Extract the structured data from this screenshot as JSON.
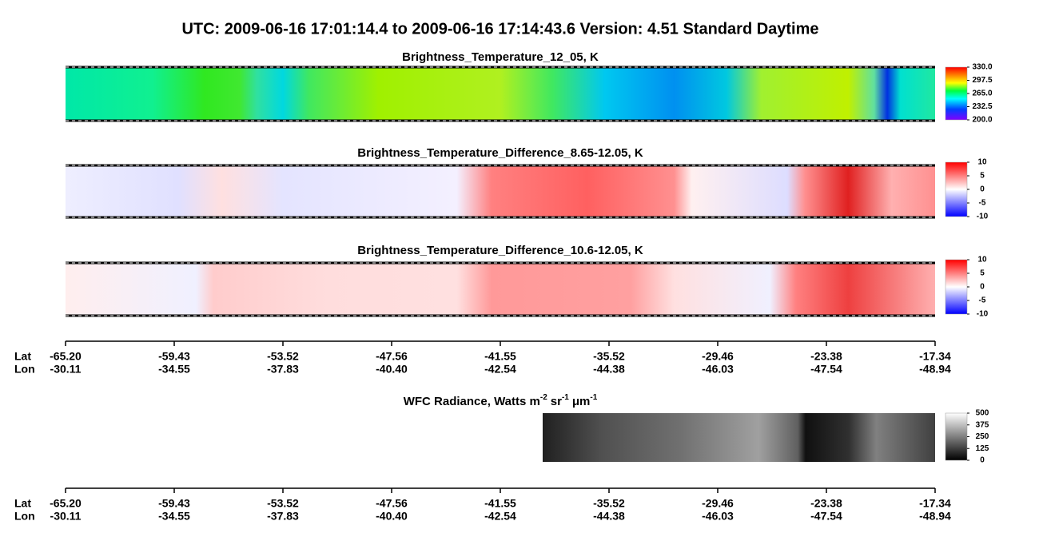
{
  "title": "UTC:  2009-06-16   17:01:14.4  to  2009-06-16   17:14:43.6    Version: 4.51  Standard Daytime",
  "chart_data": [
    {
      "type": "heatmap",
      "title": "Brightness_Temperature_12_05, K",
      "colormap": "rainbow",
      "clim": [
        200,
        330
      ],
      "cticks": [
        {
          "value": 330,
          "label": "330.0"
        },
        {
          "value": 297.5,
          "label": "297.5"
        },
        {
          "value": 265,
          "label": "265.0"
        },
        {
          "value": 232.5,
          "label": "232.5"
        },
        {
          "value": 200,
          "label": "200.0"
        }
      ]
    },
    {
      "type": "heatmap",
      "title": "Brightness_Temperature_Difference_8.65-12.05, K",
      "colormap": "diverging",
      "clim": [
        -10,
        10
      ],
      "cticks": [
        10,
        5,
        0,
        -5,
        -10
      ]
    },
    {
      "type": "heatmap",
      "title": "Brightness_Temperature_Difference_10.6-12.05, K",
      "colormap": "diverging",
      "clim": [
        -10,
        10
      ],
      "cticks": [
        10,
        5,
        0,
        -5,
        -10
      ]
    },
    {
      "type": "heatmap",
      "title_parts": [
        "WFC Radiance, Watts m",
        "-2",
        "sr",
        "-1",
        "μm",
        "-1"
      ],
      "colormap": "gray",
      "clim": [
        0,
        500
      ],
      "cticks": [
        500,
        375,
        250,
        125,
        0
      ]
    }
  ],
  "axes": [
    {
      "lat_label": "Lat",
      "lon_label": "Lon",
      "lat": [
        "-65.20",
        "-59.43",
        "-53.52",
        "-47.56",
        "-41.55",
        "-35.52",
        "-29.46",
        "-23.38",
        "-17.34"
      ],
      "lon": [
        "-30.11",
        "-34.55",
        "-37.83",
        "-40.40",
        "-42.54",
        "-44.38",
        "-46.03",
        "-47.54",
        "-48.94"
      ]
    },
    {
      "lat_label": "Lat",
      "lon_label": "Lon",
      "lat": [
        "-65.20",
        "-59.43",
        "-53.52",
        "-47.56",
        "-41.55",
        "-35.52",
        "-29.46",
        "-23.38",
        "-17.34"
      ],
      "lon": [
        "-30.11",
        "-34.55",
        "-37.83",
        "-40.40",
        "-42.54",
        "-44.38",
        "-46.03",
        "-47.54",
        "-48.94"
      ]
    }
  ]
}
